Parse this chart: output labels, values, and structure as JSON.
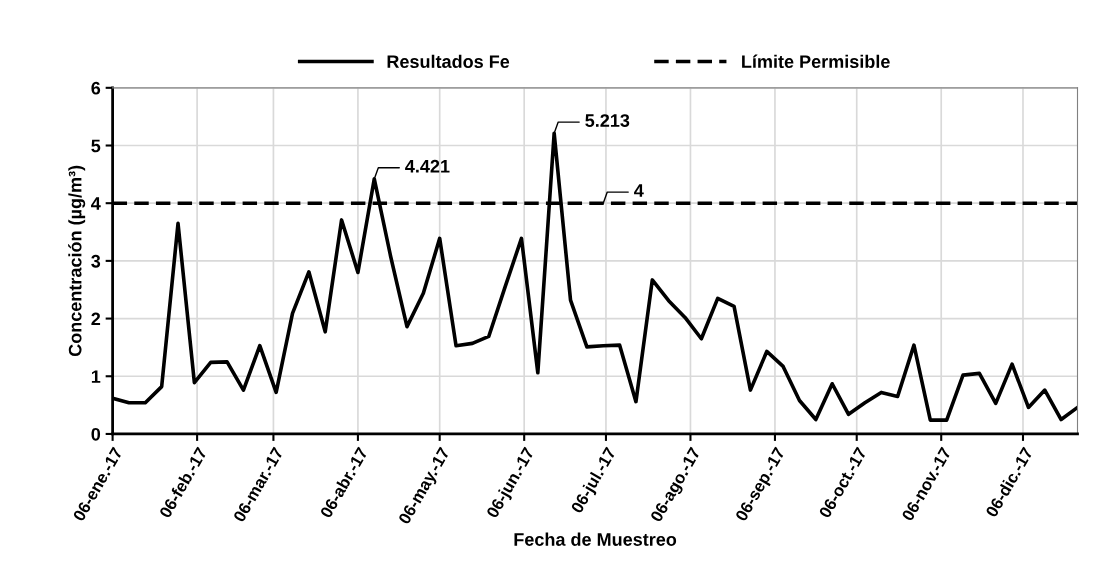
{
  "chart_data": {
    "type": "line",
    "xlabel": "Fecha de Muestreo",
    "ylabel": "Concentración (µg/m³)",
    "x": [
      "2017-01-06",
      "2017-01-12",
      "2017-01-18",
      "2017-01-24",
      "2017-01-30",
      "2017-02-05",
      "2017-02-11",
      "2017-02-17",
      "2017-02-23",
      "2017-03-01",
      "2017-03-07",
      "2017-03-13",
      "2017-03-19",
      "2017-03-25",
      "2017-03-31",
      "2017-04-06",
      "2017-04-12",
      "2017-04-18",
      "2017-04-24",
      "2017-04-30",
      "2017-05-06",
      "2017-05-12",
      "2017-05-18",
      "2017-05-24",
      "2017-05-30",
      "2017-06-05",
      "2017-06-11",
      "2017-06-17",
      "2017-06-23",
      "2017-06-29",
      "2017-07-05",
      "2017-07-11",
      "2017-07-17",
      "2017-07-23",
      "2017-07-29",
      "2017-08-04",
      "2017-08-10",
      "2017-08-16",
      "2017-08-22",
      "2017-08-28",
      "2017-09-03",
      "2017-09-09",
      "2017-09-15",
      "2017-09-21",
      "2017-09-27",
      "2017-10-03",
      "2017-10-09",
      "2017-10-15",
      "2017-10-21",
      "2017-10-27",
      "2017-11-02",
      "2017-11-08",
      "2017-11-14",
      "2017-11-20",
      "2017-11-26",
      "2017-12-02",
      "2017-12-08",
      "2017-12-14",
      "2017-12-20",
      "2017-12-26"
    ],
    "series": [
      {
        "name": "Resultados Fe",
        "color": "#000000",
        "line_style": "solid",
        "values": [
          0.62,
          0.54,
          0.54,
          0.82,
          3.65,
          0.89,
          1.24,
          1.25,
          0.76,
          1.53,
          0.72,
          2.09,
          2.81,
          1.77,
          3.71,
          2.8,
          4.421,
          3.08,
          1.86,
          2.44,
          3.39,
          1.53,
          1.57,
          1.69,
          2.55,
          3.39,
          1.06,
          5.213,
          2.32,
          1.51,
          1.53,
          1.54,
          0.56,
          2.67,
          2.31,
          2.02,
          1.65,
          2.35,
          2.21,
          0.76,
          1.43,
          1.17,
          0.58,
          0.25,
          0.87,
          0.34,
          0.54,
          0.72,
          0.65,
          1.54,
          0.24,
          0.24,
          1.02,
          1.05,
          0.53,
          1.21,
          0.46,
          0.76,
          0.25,
          0.46
        ]
      },
      {
        "name": "Límite Permisible",
        "color": "#000000",
        "line_style": "dashed",
        "x": [
          "2017-01-06",
          "2017-12-26"
        ],
        "values": [
          4,
          4
        ]
      }
    ],
    "annotations": [
      {
        "text": "4.421",
        "x": "2017-04-12",
        "y": 4.421
      },
      {
        "text": "5.213",
        "x": "2017-06-17",
        "y": 5.213
      },
      {
        "text": "4",
        "x": "2017-07-05",
        "y": 4
      }
    ],
    "xlim": [
      "2017-01-06",
      "2017-12-26"
    ],
    "xticks": [
      {
        "value": "2017-01-06",
        "label": "06-ene.-17"
      },
      {
        "value": "2017-02-06",
        "label": "06-feb.-17"
      },
      {
        "value": "2017-03-06",
        "label": "06-mar.-17"
      },
      {
        "value": "2017-04-06",
        "label": "06-abr.-17"
      },
      {
        "value": "2017-05-06",
        "label": "06-may.-17"
      },
      {
        "value": "2017-06-06",
        "label": "06-jun.-17"
      },
      {
        "value": "2017-07-06",
        "label": "06-jul.-17"
      },
      {
        "value": "2017-08-06",
        "label": "06-ago.-17"
      },
      {
        "value": "2017-09-06",
        "label": "06-sep.-17"
      },
      {
        "value": "2017-10-06",
        "label": "06-oct.-17"
      },
      {
        "value": "2017-11-06",
        "label": "06-nov.-17"
      },
      {
        "value": "2017-12-06",
        "label": "06-dic.-17"
      }
    ],
    "ylim": [
      0,
      6
    ],
    "yticks": [
      0,
      1,
      2,
      3,
      4,
      5,
      6
    ],
    "grid": true,
    "legend": "top",
    "marker": "none"
  }
}
